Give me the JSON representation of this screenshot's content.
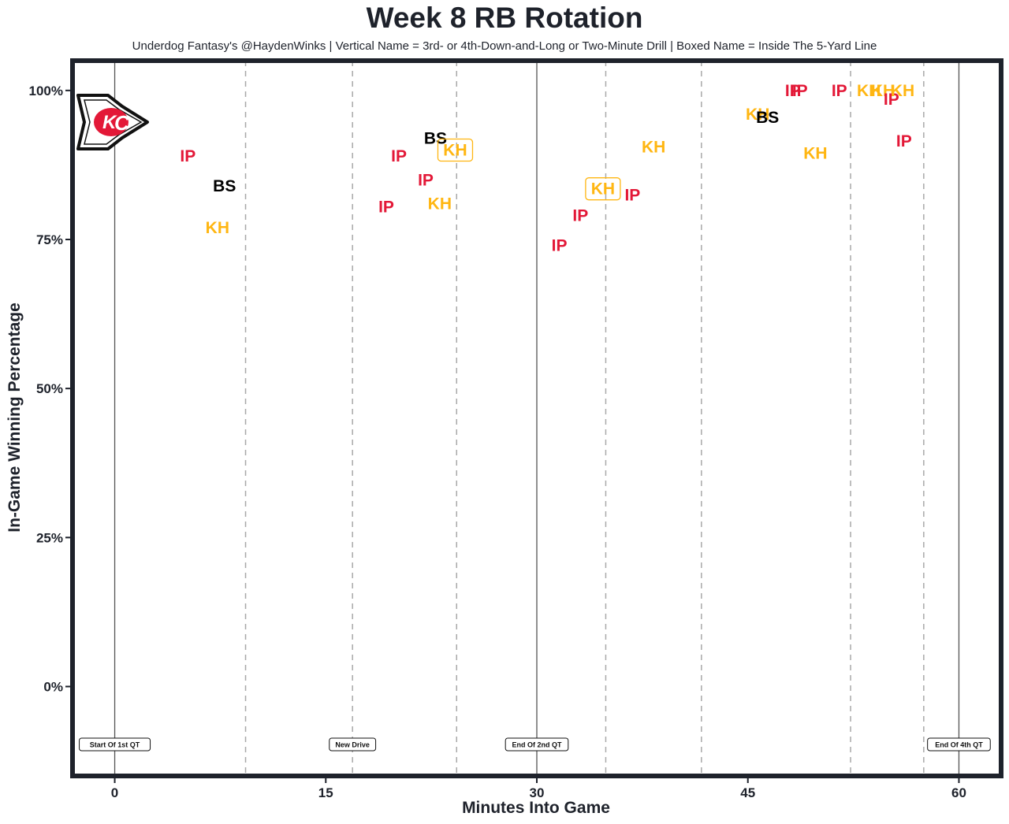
{
  "title": "Week 8 RB Rotation",
  "subtitle": "Underdog Fantasy's @HaydenWinks | Vertical Name = 3rd- or 4th-Down-and-Long or Two-Minute Drill | Boxed Name = Inside The 5-Yard Line",
  "colors": {
    "IP": "#e31837",
    "KH": "#ffb612",
    "BS": "#000000",
    "frame": "#1e222b"
  },
  "logo_icon": "kansas-city-chiefs-arrowhead-logo",
  "chart_data": {
    "type": "scatter",
    "title": "Week 8 RB Rotation",
    "xlabel": "Minutes Into Game",
    "ylabel": "In-Game Winning Percentage",
    "xlim": [
      -3,
      63
    ],
    "ylim": [
      -15,
      105
    ],
    "x_ticks": [
      0,
      15,
      30,
      45,
      60
    ],
    "x_tick_labels": [
      "0",
      "15",
      "30",
      "45",
      "60"
    ],
    "y_ticks": [
      0,
      25,
      50,
      75,
      100
    ],
    "y_tick_labels": [
      "0%",
      "25%",
      "50%",
      "75%",
      "100%"
    ],
    "grid": false,
    "solid_lines": [
      0,
      30,
      60
    ],
    "dashed_lines": [
      9.3,
      16.9,
      24.3,
      34.9,
      41.7,
      52.3,
      57.5
    ],
    "markers": [
      {
        "x": 0,
        "label": "Start Of 1st QT"
      },
      {
        "x": 16.9,
        "label": "New Drive"
      },
      {
        "x": 30,
        "label": "End Of 2nd QT"
      },
      {
        "x": 60,
        "label": "End Of 4th QT"
      }
    ],
    "points": [
      {
        "x": 5.2,
        "y": 89,
        "label": "IP"
      },
      {
        "x": 7.8,
        "y": 84,
        "label": "BS"
      },
      {
        "x": 7.3,
        "y": 77,
        "label": "KH"
      },
      {
        "x": 19.3,
        "y": 80.5,
        "label": "IP"
      },
      {
        "x": 20.2,
        "y": 89,
        "label": "IP"
      },
      {
        "x": 22.1,
        "y": 85,
        "label": "IP"
      },
      {
        "x": 22.8,
        "y": 92,
        "label": "BS"
      },
      {
        "x": 23.1,
        "y": 81,
        "label": "KH"
      },
      {
        "x": 24.2,
        "y": 90,
        "label": "KH",
        "boxed": true
      },
      {
        "x": 31.6,
        "y": 74,
        "label": "IP"
      },
      {
        "x": 33.1,
        "y": 79,
        "label": "IP"
      },
      {
        "x": 34.7,
        "y": 83.5,
        "label": "KH",
        "boxed": true
      },
      {
        "x": 36.8,
        "y": 82.5,
        "label": "IP"
      },
      {
        "x": 38.3,
        "y": 90.5,
        "label": "KH"
      },
      {
        "x": 45.7,
        "y": 96,
        "label": "KH"
      },
      {
        "x": 46.4,
        "y": 95.5,
        "label": "BS"
      },
      {
        "x": 48.2,
        "y": 100,
        "label": "IP"
      },
      {
        "x": 48.7,
        "y": 100,
        "label": "IP"
      },
      {
        "x": 49.8,
        "y": 89.5,
        "label": "KH"
      },
      {
        "x": 51.5,
        "y": 100,
        "label": "IP"
      },
      {
        "x": 53.6,
        "y": 100,
        "label": "KH"
      },
      {
        "x": 54.6,
        "y": 100,
        "label": "KH"
      },
      {
        "x": 55.2,
        "y": 98.5,
        "label": "IP"
      },
      {
        "x": 56.0,
        "y": 100,
        "label": "KH"
      },
      {
        "x": 56.1,
        "y": 91.5,
        "label": "IP"
      }
    ]
  }
}
